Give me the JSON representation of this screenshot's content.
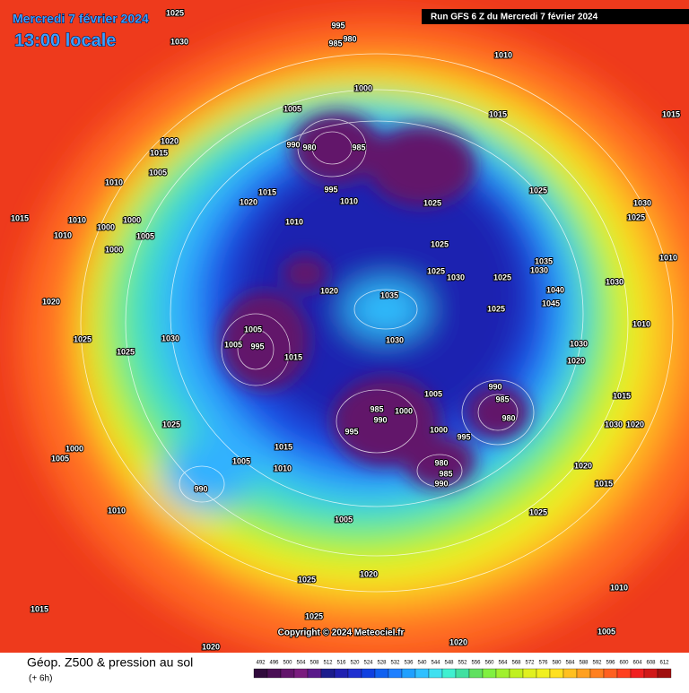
{
  "header": {
    "date": "Mercredi 7 février 2024",
    "time": "13:00 locale",
    "run": "Run GFS 6 Z du Mercredi 7 février 2024"
  },
  "copyright": "Copyright © 2024 Meteociel.fr",
  "footer": {
    "title": "Géop. Z500 & pression au sol",
    "subtitle": "(+ 6h)"
  },
  "legend": {
    "levels": [
      492,
      496,
      500,
      504,
      508,
      512,
      516,
      520,
      524,
      528,
      532,
      536,
      540,
      544,
      548,
      552,
      556,
      560,
      564,
      568,
      572,
      576,
      580,
      584,
      588,
      592,
      596,
      600,
      604,
      608,
      612
    ],
    "colors": [
      "#300a3c",
      "#4a0f55",
      "#62146a",
      "#7a1c7e",
      "#5a1a8a",
      "#1c1c8c",
      "#2020b0",
      "#2030d0",
      "#1040e0",
      "#1060f0",
      "#2080ff",
      "#20a0ff",
      "#30c0ff",
      "#40e0f0",
      "#40f0d0",
      "#40e0a0",
      "#60e060",
      "#80f040",
      "#a0f030",
      "#c0f020",
      "#e0f020",
      "#f0f020",
      "#ffe020",
      "#ffc020",
      "#ffa020",
      "#ff8020",
      "#ff6020",
      "#ff4020",
      "#f02020",
      "#d01818",
      "#a01010"
    ]
  },
  "isobar_labels": [
    1025,
    1030,
    995,
    985,
    980,
    1010,
    1000,
    1005,
    1015,
    1015,
    990,
    980,
    985,
    1020,
    1015,
    1005,
    1010,
    995,
    1015,
    1010,
    1025,
    1025,
    1030,
    1025,
    1020,
    1015,
    1010,
    1000,
    1010,
    1000,
    1010,
    1005,
    1025,
    1000,
    1035,
    1030,
    1010,
    1025,
    1030,
    1025,
    1020,
    1040,
    1035,
    1045,
    1025,
    1030,
    1020,
    1005,
    1005,
    995,
    1030,
    1025,
    1025,
    1015,
    1030,
    1030,
    1020,
    1010,
    990,
    985,
    980,
    1005,
    985,
    990,
    1000,
    995,
    1000,
    995,
    1025,
    1030,
    1020,
    1015,
    1005,
    1000,
    1005,
    980,
    985,
    990,
    990,
    1010,
    1020,
    1015,
    1010,
    1005,
    1025,
    1020,
    1025,
    1010,
    1015,
    1025,
    1005,
    1020,
    1020,
    1015
  ]
}
